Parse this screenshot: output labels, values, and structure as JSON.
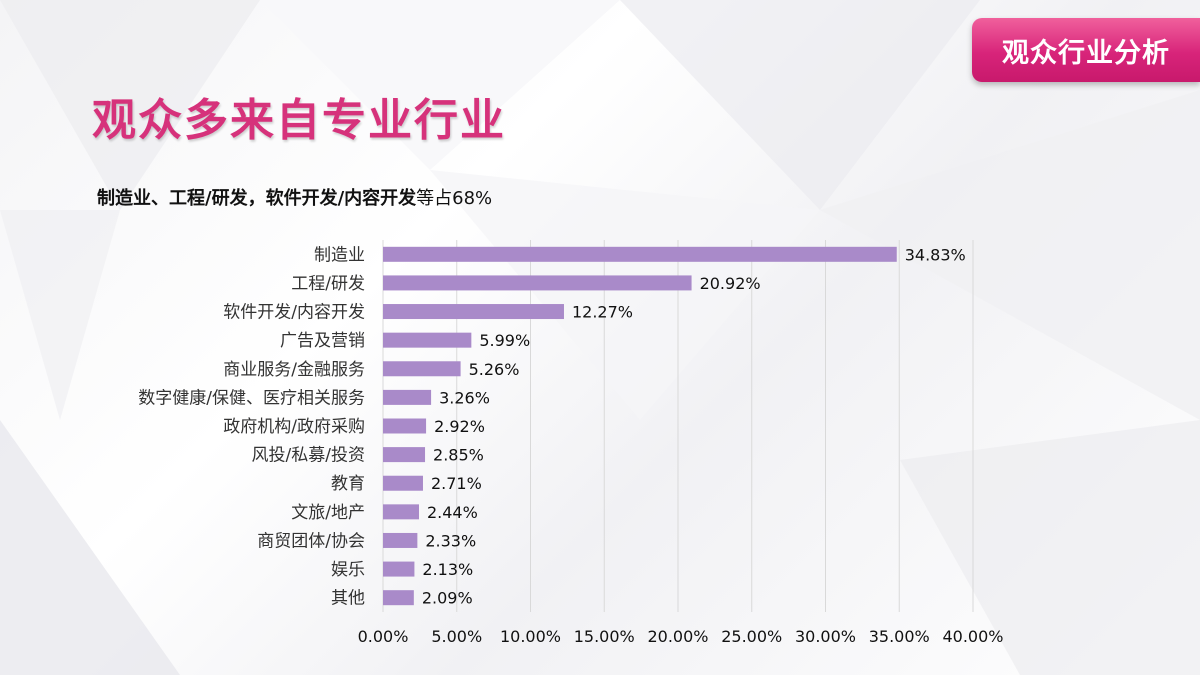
{
  "badge": {
    "text": "观众行业分析"
  },
  "page_title": "观众多来自专业行业",
  "subtitle": {
    "bold": "制造业、工程/研发，软件开发/内容开发",
    "normal": "等占68%"
  },
  "colors": {
    "bar": "#a98ac9",
    "title": "#d6327b",
    "badge": "#d8247a",
    "grid": "#d9d9d9"
  },
  "chart_data": {
    "type": "bar",
    "orientation": "horizontal",
    "categories": [
      "制造业",
      "工程/研发",
      "软件开发/内容开发",
      "广告及营销",
      "商业服务/金融服务",
      "数字健康/保健、医疗相关服务",
      "政府机构/政府采购",
      "风投/私募/投资",
      "教育",
      "文旅/地产",
      "商贸团体/协会",
      "娱乐",
      "其他"
    ],
    "values": [
      34.83,
      20.92,
      12.27,
      5.99,
      5.26,
      3.26,
      2.92,
      2.85,
      2.71,
      2.44,
      2.33,
      2.13,
      2.09
    ],
    "value_labels": [
      "34.83%",
      "20.92%",
      "12.27%",
      "5.99%",
      "5.26%",
      "3.26%",
      "2.92%",
      "2.85%",
      "2.71%",
      "2.44%",
      "2.33%",
      "2.13%",
      "2.09%"
    ],
    "xlim": [
      0,
      40
    ],
    "ticks": [
      0,
      5,
      10,
      15,
      20,
      25,
      30,
      35,
      40
    ],
    "tick_labels": [
      "0.00%",
      "5.00%",
      "10.00%",
      "15.00%",
      "20.00%",
      "25.00%",
      "30.00%",
      "35.00%",
      "40.00%"
    ],
    "grid": true,
    "legend": "none"
  }
}
